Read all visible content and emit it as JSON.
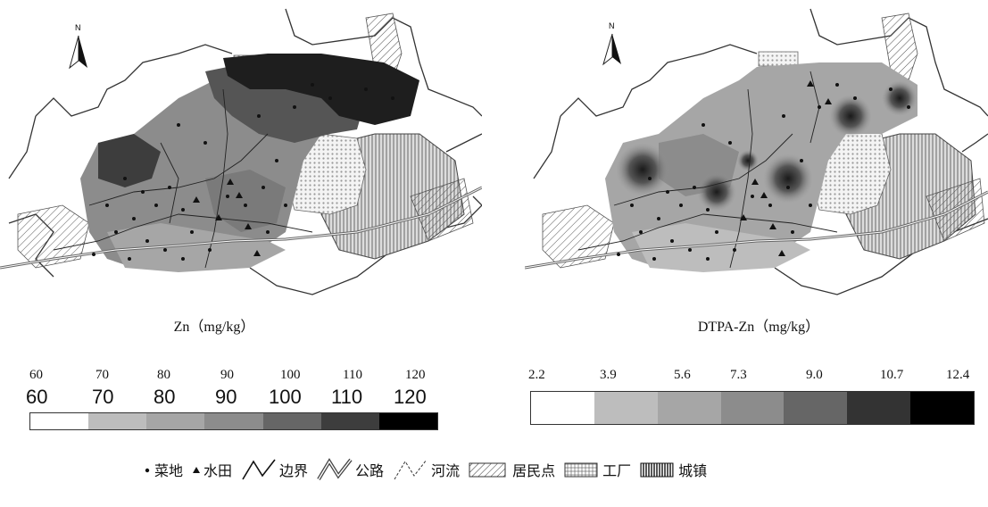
{
  "maps": {
    "left": {
      "caption": "Zn（mg/kg）",
      "north_label": "N"
    },
    "right": {
      "caption": "DTPA-Zn（mg/kg）",
      "north_label": "N"
    }
  },
  "legend_left": {
    "ticks_serif": [
      "60",
      "70",
      "80",
      "90",
      "100",
      "110",
      "120"
    ],
    "ticks_sans": [
      "60",
      "70",
      "80",
      "90",
      "100",
      "110",
      "120"
    ],
    "bins": [
      "#ffffff",
      "#bdbdbd",
      "#a6a6a6",
      "#8c8c8c",
      "#666666",
      "#3d3d3d",
      "#000000"
    ]
  },
  "legend_right": {
    "ticks": [
      "2.2",
      "3.9",
      "5.6",
      "7.3",
      "9.0",
      "10.7",
      "12.4"
    ],
    "bins": [
      "#ffffff",
      "#bdbdbd",
      "#a6a6a6",
      "#8c8c8c",
      "#666666",
      "#333333",
      "#000000"
    ]
  },
  "symbol_legend": {
    "vegetable_field": "菜地",
    "paddy_field": "水田",
    "boundary": "边界",
    "road": "公路",
    "river": "河流",
    "residential": "居民点",
    "factory": "工厂",
    "town": "城镇"
  }
}
